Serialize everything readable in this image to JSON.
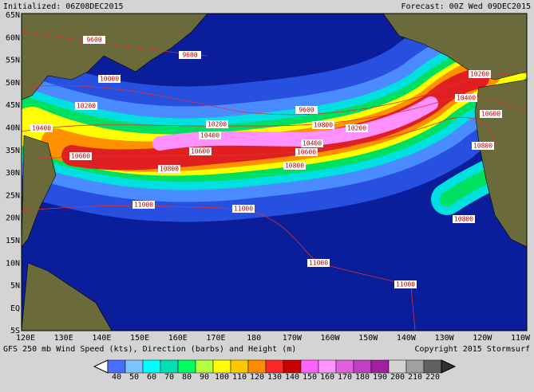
{
  "header": {
    "initialized": "Initialized: 06Z08DEC2015",
    "forecast": "Forecast: 00Z Wed 09DEC2015"
  },
  "lat_labels": [
    "65N",
    "60N",
    "55N",
    "50N",
    "45N",
    "40N",
    "35N",
    "30N",
    "25N",
    "20N",
    "15N",
    "10N",
    "5N",
    "EQ",
    "5S"
  ],
  "lon_labels": [
    "120E",
    "130E",
    "140E",
    "150E",
    "160E",
    "170E",
    "180",
    "170W",
    "160W",
    "150W",
    "140W",
    "130W",
    "120W",
    "110W"
  ],
  "contour_labels": [
    "9600",
    "9600",
    "10000",
    "10200",
    "9600",
    "10200",
    "10400",
    "10800",
    "10200",
    "10400",
    "10600",
    "10600",
    "10600",
    "10800",
    "10800",
    "10400",
    "11000",
    "11000",
    "11000",
    "11000",
    "10200",
    "10400",
    "10600",
    "10800",
    "10800"
  ],
  "footer": {
    "description": "GFS 250 mb Wind Speed (kts), Direction (barbs) and Height (m)",
    "copyright": "Copyright 2015 Stormsurf"
  },
  "colorbar": [
    {
      "label": "40",
      "color": "#4a6cff"
    },
    {
      "label": "50",
      "color": "#7cc4ff"
    },
    {
      "label": "60",
      "color": "#00ffff"
    },
    {
      "label": "70",
      "color": "#00e0b4"
    },
    {
      "label": "80",
      "color": "#00ff60"
    },
    {
      "label": "90",
      "color": "#b4ff3c"
    },
    {
      "label": "100",
      "color": "#ffff00"
    },
    {
      "label": "110",
      "color": "#ffc800"
    },
    {
      "label": "120",
      "color": "#ff8c00"
    },
    {
      "label": "130",
      "color": "#ff2828"
    },
    {
      "label": "140",
      "color": "#c80000"
    },
    {
      "label": "150",
      "color": "#ff64ff"
    },
    {
      "label": "160",
      "color": "#ff96ff"
    },
    {
      "label": "170",
      "color": "#e060e0"
    },
    {
      "label": "180",
      "color": "#c040c0"
    },
    {
      "label": "190",
      "color": "#a020a0"
    },
    {
      "label": "200",
      "color": "#d2d2d2"
    },
    {
      "label": "210",
      "color": "#a0a0a0"
    },
    {
      "label": "220",
      "color": "#606060"
    }
  ]
}
